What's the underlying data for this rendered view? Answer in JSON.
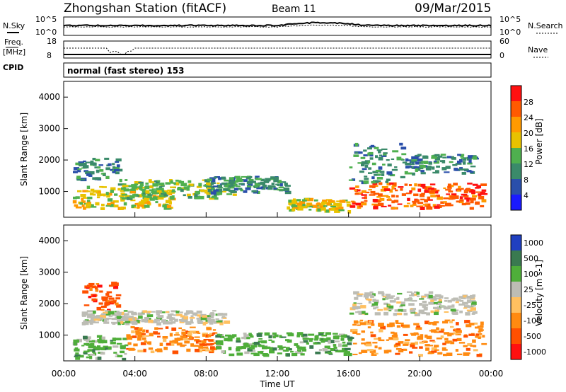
{
  "header": {
    "station": "Zhongshan Station (fitACF)",
    "beam": "Beam 11",
    "date": "09/Mar/2015"
  },
  "noise_panel": {
    "left_label": "N.Sky",
    "right_label": "N.Search",
    "left_ticks": [
      "10^5",
      "10^0"
    ],
    "right_ticks": [
      "10^5",
      "10^0"
    ]
  },
  "freq_panel": {
    "left_label_1": "Freq.",
    "left_label_2": "[MHz]",
    "right_label": "Nave",
    "left_ticks": [
      "18",
      "8"
    ],
    "right_ticks": [
      "60",
      "0"
    ]
  },
  "cpid": {
    "label": "CPID",
    "value": "normal (fast stereo) 153"
  },
  "chart_data": [
    {
      "type": "heatmap",
      "title": "",
      "ylabel": "Slant Range [km]",
      "xlim": [
        "00:00",
        "00:00"
      ],
      "ylim": [
        180,
        4500
      ],
      "y_ticks": [
        1000,
        2000,
        3000,
        4000
      ],
      "colorbar": {
        "label": "Power [dB]",
        "range": [
          0,
          32
        ],
        "ticks": [
          "4",
          "8",
          "12",
          "16",
          "20",
          "24",
          "28"
        ],
        "colors": [
          "#1a1aff",
          "#2a4faa",
          "#3a8a6a",
          "#4fb04f",
          "#e8c200",
          "#ff9a00",
          "#ff5a00",
          "#ff1010"
        ]
      },
      "echo_regions": [
        {
          "t0": 0.5,
          "t1": 3.0,
          "r0": 1400,
          "r1": 2100,
          "level": 8
        },
        {
          "t0": 0.5,
          "t1": 6.0,
          "r0": 500,
          "r1": 1200,
          "level": 16
        },
        {
          "t0": 3.0,
          "t1": 9.5,
          "r0": 800,
          "r1": 1400,
          "level": 12
        },
        {
          "t0": 8.0,
          "t1": 12.5,
          "r0": 1000,
          "r1": 1500,
          "level": 8
        },
        {
          "t0": 12.5,
          "t1": 16.0,
          "r0": 400,
          "r1": 800,
          "level": 16
        },
        {
          "t0": 16.0,
          "t1": 23.5,
          "r0": 500,
          "r1": 1300,
          "level": 24
        },
        {
          "t0": 16.0,
          "t1": 19.0,
          "r0": 1300,
          "r1": 2600,
          "level": 8
        },
        {
          "t0": 19.0,
          "t1": 23.0,
          "r0": 1600,
          "r1": 2200,
          "level": 8
        }
      ]
    },
    {
      "type": "heatmap",
      "title": "",
      "ylabel": "Slant Range [km]",
      "xlabel": "Time UT",
      "x_ticks": [
        "00:00",
        "04:00",
        "08:00",
        "12:00",
        "16:00",
        "20:00",
        "00:00"
      ],
      "ylim": [
        180,
        4500
      ],
      "y_ticks": [
        1000,
        2000,
        3000,
        4000
      ],
      "colorbar": {
        "label": "Velocity [m s-1]",
        "ticks": [
          "1000",
          "500",
          "100",
          "25",
          "-25",
          "-100",
          "-500",
          "-1000"
        ],
        "colors": [
          "#2040c0",
          "#3a7a50",
          "#4fae3a",
          "#bdbdb5",
          "#ffc060",
          "#ff8a10",
          "#ff5000",
          "#ff1010"
        ]
      },
      "echo_regions": [
        {
          "t0": 0.5,
          "t1": 3.5,
          "r0": 250,
          "r1": 1000,
          "level": 100
        },
        {
          "t0": 1.0,
          "t1": 3.0,
          "r0": 1800,
          "r1": 2700,
          "level": -500
        },
        {
          "t0": 1.0,
          "t1": 9.0,
          "r0": 1400,
          "r1": 1800,
          "level": 0
        },
        {
          "t0": 3.5,
          "t1": 8.5,
          "r0": 500,
          "r1": 1300,
          "level": -100
        },
        {
          "t0": 8.5,
          "t1": 16.0,
          "r0": 400,
          "r1": 1100,
          "level": 100
        },
        {
          "t0": 16.0,
          "t1": 23.5,
          "r0": 400,
          "r1": 1500,
          "level": -100
        },
        {
          "t0": 16.0,
          "t1": 21.0,
          "r0": 1700,
          "r1": 2400,
          "level": 0
        },
        {
          "t0": 21.0,
          "t1": 23.0,
          "r0": 1700,
          "r1": 2300,
          "level": 0
        }
      ]
    }
  ]
}
